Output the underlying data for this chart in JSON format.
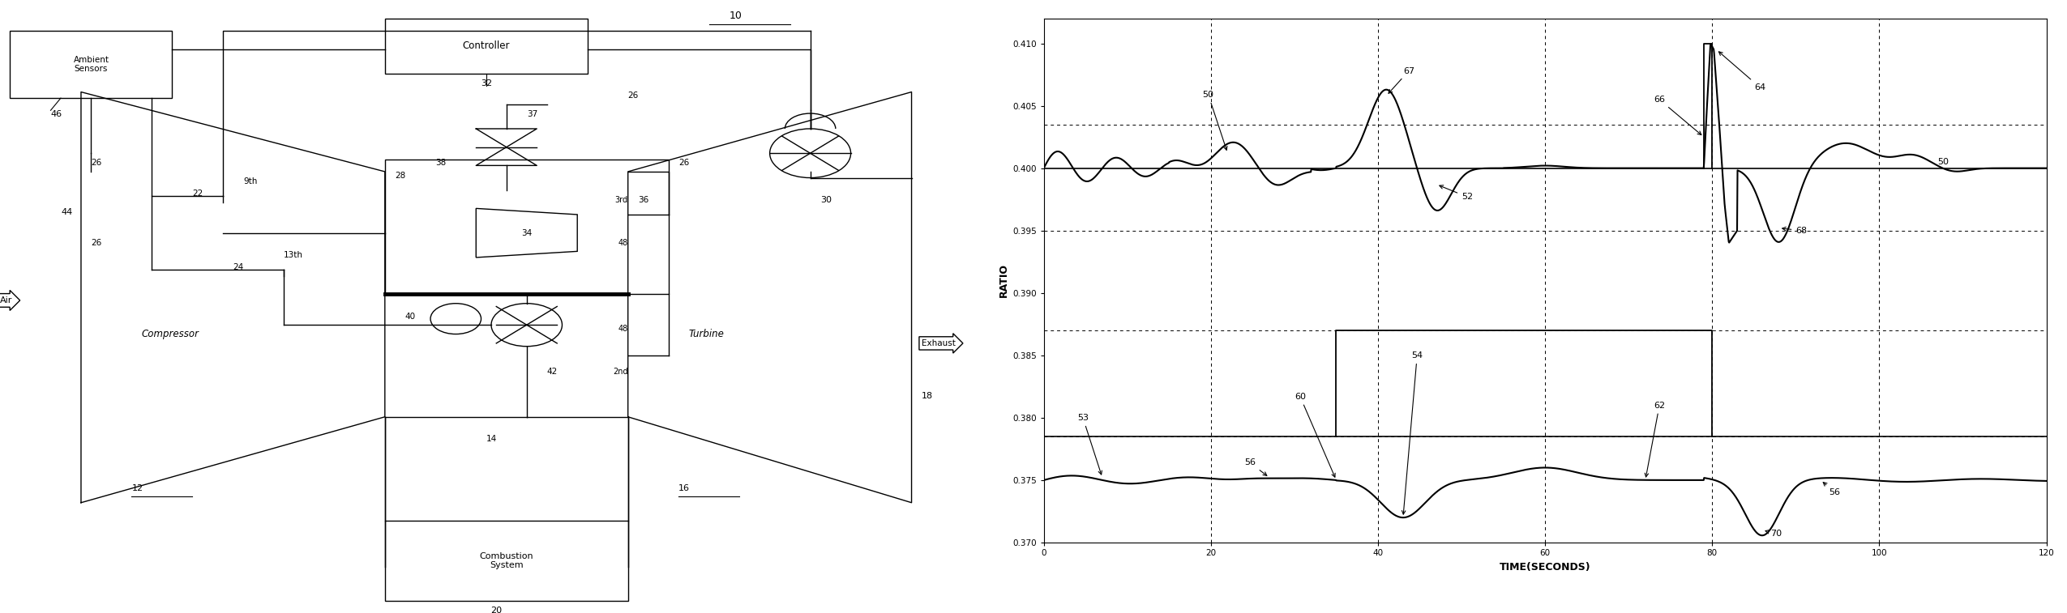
{
  "figure_width": 25.5,
  "figure_height": 7.57,
  "dpi": 100,
  "bg_color": "#ffffff",
  "chart": {
    "xlim": [
      0,
      120
    ],
    "ylim": [
      0.37,
      0.412
    ],
    "xticks": [
      0,
      20,
      40,
      60,
      80,
      100,
      120
    ],
    "yticks": [
      0.37,
      0.375,
      0.38,
      0.385,
      0.39,
      0.395,
      0.4,
      0.405,
      0.41
    ],
    "xlabel": "TIME(SECONDS)",
    "ylabel": "RATIO",
    "hlines_dashed": [
      0.4035,
      0.395,
      0.387,
      0.3785
    ],
    "vlines_dashed": [
      20,
      40,
      60,
      80,
      100
    ]
  }
}
